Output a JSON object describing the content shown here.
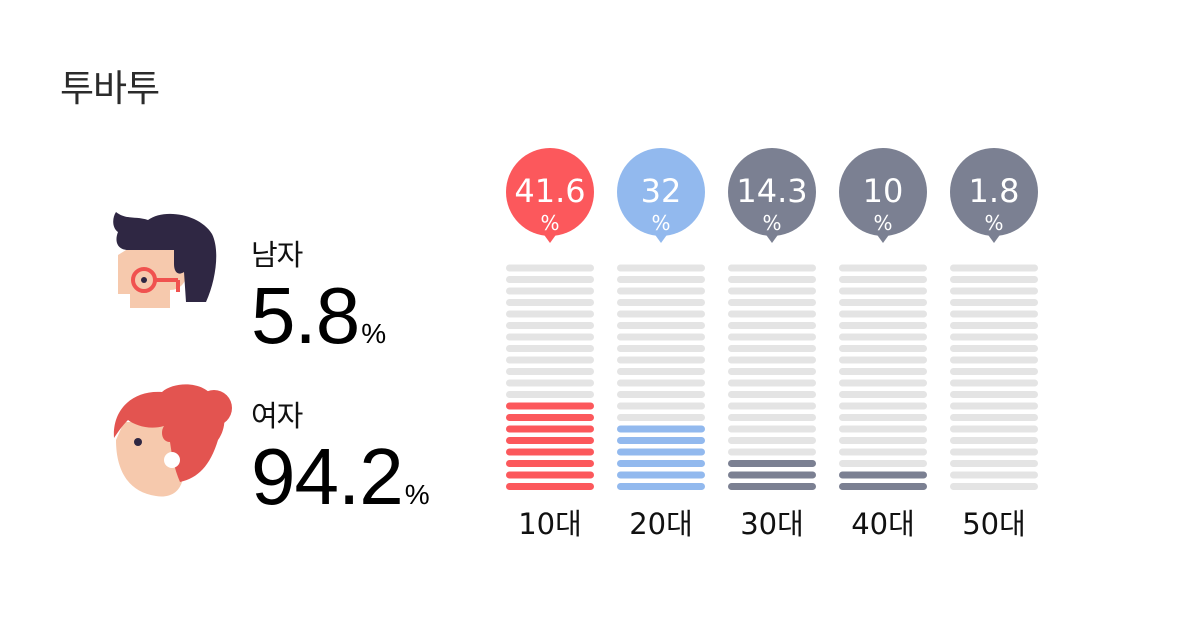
{
  "title": "투바투",
  "gender": {
    "male": {
      "label": "남자",
      "value": "5.8",
      "unit": "%"
    },
    "female": {
      "label": "여자",
      "value": "94.2",
      "unit": "%"
    }
  },
  "chart_data": {
    "type": "bar",
    "categories": [
      "10대",
      "20대",
      "30대",
      "40대",
      "50대"
    ],
    "values": [
      41.6,
      32,
      14.3,
      10,
      1.8
    ],
    "value_labels": [
      "41.6",
      "32",
      "14.3",
      "10",
      "1.8"
    ],
    "unit": "%",
    "filled_segments": [
      8,
      6,
      3,
      2,
      0
    ],
    "total_segments": 20,
    "colors": [
      "#fc585c",
      "#92b9ee",
      "#7b8092",
      "#7b8092",
      "#7b8092"
    ],
    "empty_color": "#e4e4e4"
  }
}
